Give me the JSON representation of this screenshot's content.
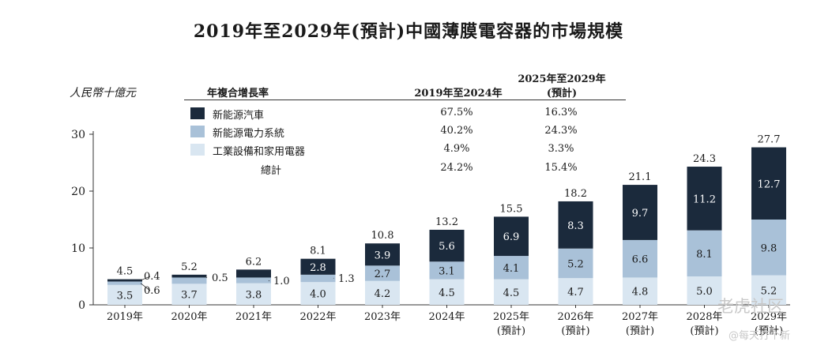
{
  "title": "2019年至2029年(預計)中國薄膜電容器的市場規模",
  "unit": "人民幣十億元",
  "table": {
    "col_label": "年複合增長率",
    "col_period1": "2019年至2024年",
    "col_period2_line1": "2025年至2029年",
    "col_period2_line2": "(預計)",
    "rows": [
      {
        "label": "新能源汽車",
        "period1": "67.5%",
        "period2": "16.3%",
        "color": "#1b2a3c"
      },
      {
        "label": "新能源電力系統",
        "period1": "40.2%",
        "period2": "24.3%",
        "color": "#a9c1d8"
      },
      {
        "label": "工業設備和家用電器",
        "period1": "4.9%",
        "period2": "3.3%",
        "color": "#d9e6f1"
      }
    ],
    "total": {
      "label": "總計",
      "period1": "24.2%",
      "period2": "15.4%"
    }
  },
  "chart_data": {
    "type": "bar",
    "stacked": true,
    "title": "2019年至2029年(預計)中國薄膜電容器的市場規模",
    "ylabel": "人民幣十億元",
    "ylim": [
      0,
      30
    ],
    "yticks": [
      0,
      10,
      20,
      30
    ],
    "categories": [
      {
        "line1": "2019年",
        "line2": ""
      },
      {
        "line1": "2020年",
        "line2": ""
      },
      {
        "line1": "2021年",
        "line2": ""
      },
      {
        "line1": "2022年",
        "line2": ""
      },
      {
        "line1": "2023年",
        "line2": ""
      },
      {
        "line1": "2024年",
        "line2": ""
      },
      {
        "line1": "2025年",
        "line2": "(預計)"
      },
      {
        "line1": "2026年",
        "line2": "(預計)"
      },
      {
        "line1": "2027年",
        "line2": "(預計)"
      },
      {
        "line1": "2028年",
        "line2": "(預計)"
      },
      {
        "line1": "2029年",
        "line2": "(預計)"
      }
    ],
    "series": [
      {
        "name": "工業設備和家用電器",
        "color": "#d9e6f1",
        "values": [
          3.5,
          3.7,
          3.8,
          4.0,
          4.2,
          4.5,
          4.5,
          4.7,
          4.8,
          5.0,
          5.2
        ],
        "labels": [
          "3.5",
          "3.7",
          "3.8",
          "4.0",
          "4.2",
          "4.5",
          "4.5",
          "4.7",
          "4.8",
          "5.0",
          "5.2"
        ]
      },
      {
        "name": "新能源電力系統",
        "color": "#a9c1d8",
        "values": [
          0.6,
          1.1,
          1.0,
          1.3,
          2.7,
          3.1,
          4.1,
          5.2,
          6.6,
          8.1,
          9.8
        ],
        "labels": [
          "0.6",
          "1.1",
          "1.0",
          "1.3",
          "2.7",
          "3.1",
          "4.1",
          "5.2",
          "6.6",
          "8.1",
          "9.8"
        ]
      },
      {
        "name": "新能源汽車",
        "color": "#1b2a3c",
        "values": [
          0.4,
          0.5,
          1.4,
          2.8,
          3.9,
          5.6,
          6.9,
          8.3,
          9.7,
          11.2,
          12.7
        ],
        "labels": [
          "0.4",
          "0.5",
          "1.4",
          "2.8",
          "3.9",
          "5.6",
          "6.9",
          "8.3",
          "9.7",
          "11.2",
          "12.7"
        ]
      }
    ],
    "totals": [
      "4.5",
      "5.2",
      "6.2",
      "8.1",
      "10.8",
      "13.2",
      "15.5",
      "18.2",
      "21.1",
      "24.3",
      "27.7"
    ]
  },
  "watermark": {
    "main": "老虎社区",
    "sub": "@每天打个新"
  }
}
